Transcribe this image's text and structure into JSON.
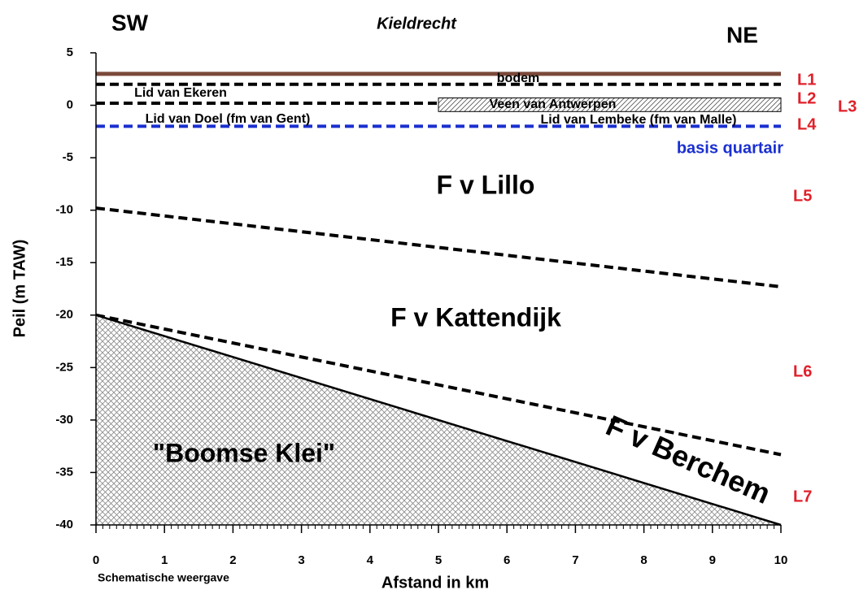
{
  "chart_data": {
    "type": "line",
    "xlabel": "Afstand in km",
    "ylabel": "Peil (m TAW)",
    "xlim": [
      0,
      10
    ],
    "xticks": [
      0,
      1,
      2,
      3,
      4,
      5,
      6,
      7,
      8,
      9,
      10
    ],
    "xminor_per_major": 10,
    "ylim": [
      -40,
      5
    ],
    "yticks": [
      5,
      0,
      -5,
      -10,
      -15,
      -20,
      -25,
      -30,
      -35,
      -40
    ],
    "series": [
      {
        "name": "bodem",
        "color": "#7b4a3a",
        "dash": false,
        "x": [
          0,
          10
        ],
        "values": [
          3,
          3
        ]
      },
      {
        "color": "#000000",
        "dash": true,
        "x": [
          0,
          10
        ],
        "values": [
          2,
          2
        ]
      },
      {
        "color": "#000000",
        "dash": true,
        "x": [
          0,
          5
        ],
        "values": [
          0.2,
          0.2
        ]
      },
      {
        "color": "#1a2fd0",
        "dash": true,
        "x": [
          0,
          10
        ],
        "values": [
          -2,
          -2
        ]
      },
      {
        "color": "#000000",
        "dash": true,
        "x": [
          0,
          10
        ],
        "values": [
          -9.8,
          -17.3
        ]
      },
      {
        "color": "#000000",
        "dash": true,
        "x": [
          0,
          10
        ],
        "values": [
          -20,
          -33.3
        ]
      },
      {
        "color": "#000000",
        "dash": false,
        "fill": "crosshatch",
        "x": [
          0,
          10
        ],
        "values": [
          -20,
          -40
        ]
      }
    ],
    "regions": [
      {
        "label": "Veen van Antwerpen",
        "x": [
          5,
          10
        ],
        "values": [
          -0.6,
          0.7
        ],
        "fill": "hatch"
      }
    ],
    "annotations": [
      {
        "text": "SW",
        "color": "#000000"
      },
      {
        "text": "Kieldrecht",
        "color": "#000000"
      },
      {
        "text": "NE",
        "color": "#000000"
      },
      {
        "text": "L1",
        "color": "#e0202a"
      },
      {
        "text": "L2",
        "color": "#e0202a"
      },
      {
        "text": "L3",
        "color": "#e0202a"
      },
      {
        "text": "L4",
        "color": "#e0202a"
      },
      {
        "text": "basis quartair",
        "color": "#1a2fd0"
      },
      {
        "text": "L5",
        "color": "#e0202a"
      },
      {
        "text": "L6",
        "color": "#e0202a"
      },
      {
        "text": "L7",
        "color": "#e0202a"
      },
      {
        "text": "Lid van Ekeren",
        "color": "#000000"
      },
      {
        "text": "Lid van Doel (fm van Gent)",
        "color": "#000000"
      },
      {
        "text": "Lid van Lembeke (fm van Malle)",
        "color": "#000000"
      },
      {
        "text": "F v Lillo",
        "color": "#000000"
      },
      {
        "text": "F v Kattendijk",
        "color": "#000000"
      },
      {
        "text": "\"Boomse Klei\"",
        "color": "#000000"
      },
      {
        "text": "F v Berchem",
        "color": "#000000"
      },
      {
        "text": "Schematische weergave",
        "color": "#000000"
      }
    ]
  }
}
